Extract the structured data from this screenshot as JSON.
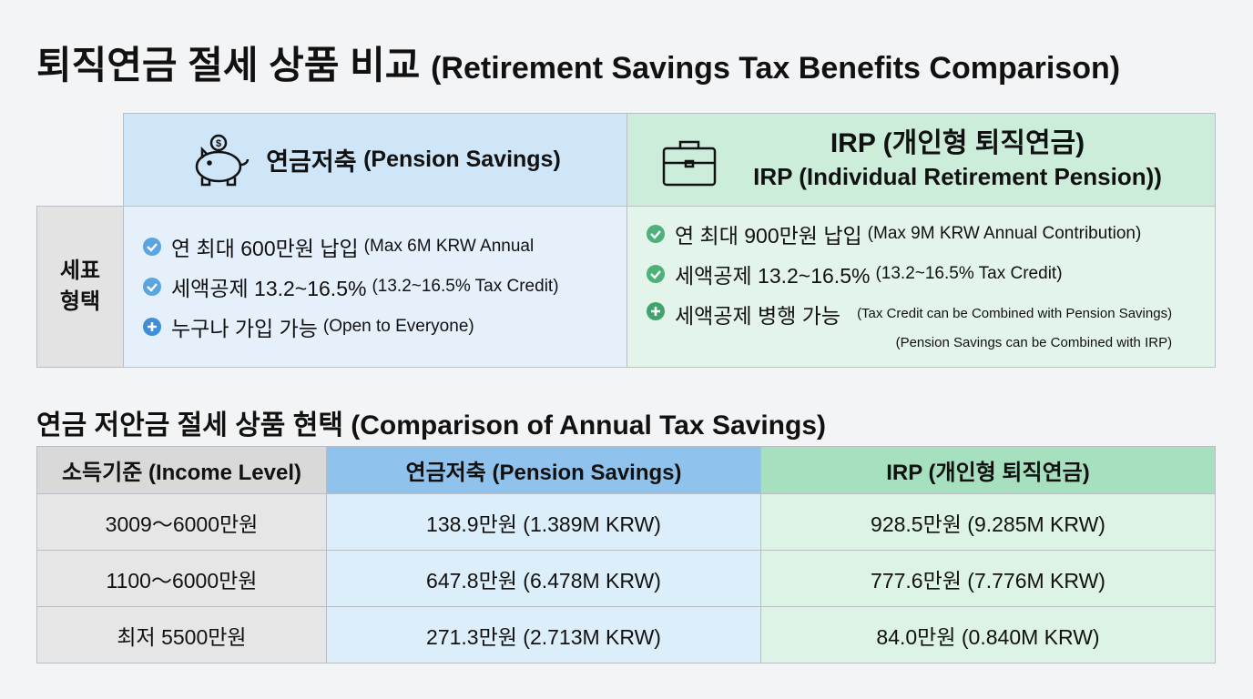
{
  "header": {
    "title": "퇴직연금 절세 상품 비교",
    "title_en": "(Retirement Savings Tax Benefits Comparison)"
  },
  "comparison": {
    "row_label": [
      "세표",
      "형택"
    ],
    "columns": [
      {
        "title": "연금저축",
        "title_en": "(Pension Savings)",
        "items": [
          {
            "text": "연 최대 600만원 납입",
            "note": "(Max 6M KRW Annual"
          },
          {
            "text": "세액공제 13.2~16.5%",
            "note": "(13.2~16.5% Tax Credit)"
          },
          {
            "text": "누구나 가입 가능",
            "note": "(Open to Everyone)"
          }
        ]
      },
      {
        "title": "IRP (개인형 퇴직연금)",
        "title_en": "IRP (Individual Retirement Pension))",
        "items": [
          {
            "text": "연 최대 900만원 납입",
            "note": "(Max 9M KRW Annual Contribution)"
          },
          {
            "text": "세액공제 13.2~16.5%",
            "note": "(13.2~16.5% Tax Credit)"
          },
          {
            "text": "세액공제 병행 가능",
            "note": "(Tax Credit can be Combined with Pension Savings)",
            "note2": "(Pension Savings can be Combined with IRP)"
          }
        ]
      }
    ]
  },
  "savings": {
    "title": "연금 저안금 절세 상품 현택 (Comparison of Annual Tax Savings)",
    "header": [
      "소득기준 (Income Level)",
      "연금저축 (Pension Savings)",
      "IRP (개인형 퇴직연금)"
    ],
    "rows": [
      [
        "3009〜6000만원",
        "138.9만원 (1.389M KRW)",
        "928.5만원 (9.285M KRW)"
      ],
      [
        "1100〜6000만원",
        "647.8만원 (6.478M KRW)",
        "777.6만원 (7.776M KRW)"
      ],
      [
        "최저 5500만원",
        "271.3만원 (2.713M KRW)",
        "84.0만원 (0.840M KRW)"
      ]
    ]
  }
}
